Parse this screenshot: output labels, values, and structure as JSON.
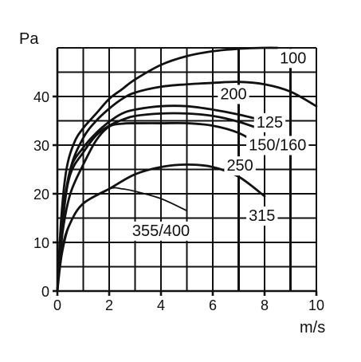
{
  "chart_data": {
    "type": "line",
    "title": "",
    "xlabel": "m/s",
    "ylabel": "Pa",
    "xlim": [
      0,
      10
    ],
    "ylim": [
      0,
      50
    ],
    "x_ticks": [
      0,
      2,
      4,
      6,
      8,
      10
    ],
    "y_ticks": [
      0,
      10,
      20,
      30,
      40
    ],
    "x_tick_labels": [
      "0",
      "2",
      "4",
      "6",
      "8",
      "10"
    ],
    "y_tick_labels": [
      "0",
      "10",
      "20",
      "30",
      "40"
    ],
    "grid": true,
    "series": [
      {
        "name": "100",
        "points": [
          [
            0,
            0
          ],
          [
            0.15,
            15
          ],
          [
            0.35,
            25
          ],
          [
            0.65,
            30.5
          ],
          [
            1,
            33.5
          ],
          [
            1.5,
            36.5
          ],
          [
            2,
            39.5
          ],
          [
            2.5,
            41.5
          ],
          [
            3,
            43.5
          ],
          [
            4,
            46.5
          ],
          [
            5,
            48.3
          ],
          [
            6,
            49.3
          ],
          [
            7,
            49.8
          ],
          [
            8,
            50
          ],
          [
            8.5,
            50
          ]
        ]
      },
      {
        "name": "200",
        "points": [
          [
            0,
            0
          ],
          [
            0.2,
            14
          ],
          [
            0.5,
            25
          ],
          [
            1,
            31.5
          ],
          [
            1.5,
            35
          ],
          [
            2,
            37.5
          ],
          [
            2.5,
            39.5
          ],
          [
            3,
            40.8
          ],
          [
            4,
            42
          ],
          [
            5,
            42.5
          ],
          [
            6,
            42.8
          ],
          [
            7,
            43
          ],
          [
            8,
            42.5
          ],
          [
            9,
            41
          ],
          [
            10,
            38
          ]
        ]
      },
      {
        "name": "125",
        "points": [
          [
            0,
            0
          ],
          [
            0.2,
            15
          ],
          [
            0.5,
            25
          ],
          [
            1,
            29.5
          ],
          [
            1.5,
            32.5
          ],
          [
            2,
            34.8
          ],
          [
            2.5,
            36.5
          ],
          [
            3,
            37.3
          ],
          [
            4,
            38
          ],
          [
            5,
            38
          ],
          [
            6,
            37.3
          ],
          [
            7,
            36.3
          ],
          [
            8,
            35
          ]
        ]
      },
      {
        "name": "150/160",
        "points": [
          [
            0,
            0
          ],
          [
            0.2,
            15
          ],
          [
            0.5,
            24
          ],
          [
            1,
            28.5
          ],
          [
            1.5,
            32
          ],
          [
            2,
            34
          ],
          [
            2.5,
            35.2
          ],
          [
            3,
            36
          ],
          [
            4,
            36.5
          ],
          [
            5,
            36.5
          ],
          [
            6,
            36
          ],
          [
            7,
            34.8
          ],
          [
            8,
            33
          ]
        ]
      },
      {
        "name": "250",
        "points": [
          [
            0,
            0
          ],
          [
            0.2,
            12
          ],
          [
            0.5,
            20
          ],
          [
            1,
            26
          ],
          [
            1.5,
            31
          ],
          [
            2,
            33.8
          ],
          [
            2.5,
            34.4
          ],
          [
            3,
            34.5
          ],
          [
            4,
            34.5
          ],
          [
            5,
            34.5
          ],
          [
            6,
            34
          ],
          [
            7,
            32.5
          ],
          [
            8,
            29.5
          ]
        ]
      },
      {
        "name": "315",
        "points": [
          [
            0,
            0
          ],
          [
            0.2,
            9
          ],
          [
            0.5,
            14
          ],
          [
            1,
            18
          ],
          [
            2,
            21
          ],
          [
            3,
            24
          ],
          [
            4,
            25.5
          ],
          [
            5,
            26
          ],
          [
            6,
            25.5
          ],
          [
            7,
            23.5
          ],
          [
            8,
            19.5
          ]
        ]
      },
      {
        "name": "355/400",
        "points": [
          [
            0,
            0
          ],
          [
            0.2,
            8
          ],
          [
            0.5,
            14
          ],
          [
            1,
            18
          ],
          [
            2,
            21
          ],
          [
            2.5,
            21
          ],
          [
            3,
            20.5
          ],
          [
            4,
            19
          ],
          [
            5,
            16.5
          ]
        ]
      }
    ],
    "curve_labels": [
      {
        "text": "100",
        "x": 9.1,
        "y": 47.7
      },
      {
        "text": "200",
        "x": 6.8,
        "y": 40.3
      },
      {
        "text": "125",
        "x": 8.2,
        "y": 34.5
      },
      {
        "text": "150/160",
        "x": 8.5,
        "y": 29.8
      },
      {
        "text": "250",
        "x": 7.05,
        "y": 25.6
      },
      {
        "text": "315",
        "x": 7.9,
        "y": 15.3
      },
      {
        "text": "355/400",
        "x": 4.0,
        "y": 12.2
      }
    ]
  }
}
